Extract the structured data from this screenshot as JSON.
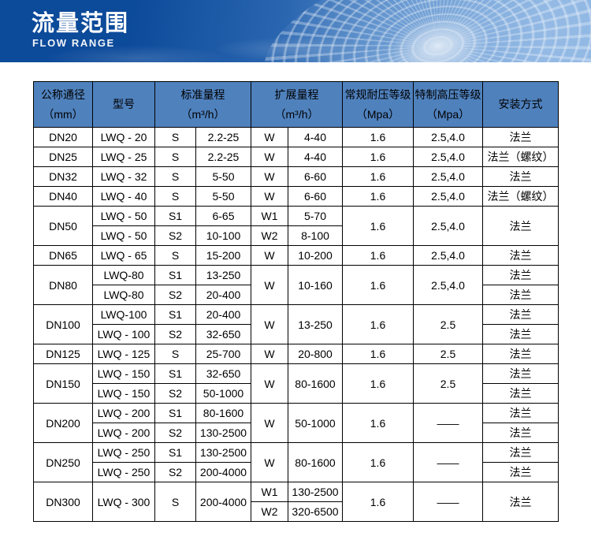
{
  "banner": {
    "title": "流量范围",
    "subtitle": "FLOW RANGE"
  },
  "colors": {
    "banner_left": "#0c4a9a",
    "banner_right": "#8db5e2",
    "table_header_bg": "#4f81bd",
    "table_border": "#000000",
    "banner_text": "#ffffff",
    "cell_text": "#000000"
  },
  "table": {
    "header_cells": [
      {
        "lines": [
          "公称通径",
          "（mm）"
        ],
        "colspan": 1
      },
      {
        "lines": [
          "型号"
        ],
        "colspan": 1
      },
      {
        "lines": [
          "标准量程",
          "（m³/h）"
        ],
        "colspan": 2
      },
      {
        "lines": [
          "扩展量程",
          "（m³/h）"
        ],
        "colspan": 2
      },
      {
        "lines": [
          "常规耐压等级",
          "（Mpa）"
        ],
        "colspan": 1
      },
      {
        "lines": [
          "特制高压等级",
          "（Mpa）"
        ],
        "colspan": 1
      },
      {
        "lines": [
          "安装方式"
        ],
        "colspan": 1
      }
    ],
    "rows": [
      [
        {
          "t": "DN20"
        },
        {
          "t": "LWQ - 20"
        },
        {
          "t": "S"
        },
        {
          "t": "2.2-25"
        },
        {
          "t": "W"
        },
        {
          "t": "4-40"
        },
        {
          "t": "1.6"
        },
        {
          "t": "2.5,4.0"
        },
        {
          "t": "法兰"
        }
      ],
      [
        {
          "t": "DN25"
        },
        {
          "t": "LWQ - 25"
        },
        {
          "t": "S"
        },
        {
          "t": "2.2-25"
        },
        {
          "t": "W"
        },
        {
          "t": "4-40"
        },
        {
          "t": "1.6"
        },
        {
          "t": "2.5,4.0"
        },
        {
          "t": "法兰（螺纹）"
        }
      ],
      [
        {
          "t": "DN32"
        },
        {
          "t": "LWQ - 32"
        },
        {
          "t": "S"
        },
        {
          "t": "5-50"
        },
        {
          "t": "W"
        },
        {
          "t": "6-60"
        },
        {
          "t": "1.6"
        },
        {
          "t": "2.5,4.0"
        },
        {
          "t": "法兰"
        }
      ],
      [
        {
          "t": "DN40"
        },
        {
          "t": "LWQ - 40"
        },
        {
          "t": "S"
        },
        {
          "t": "5-50"
        },
        {
          "t": "W"
        },
        {
          "t": "6-60"
        },
        {
          "t": "1.6"
        },
        {
          "t": "2.5,4.0"
        },
        {
          "t": "法兰（螺纹）"
        }
      ],
      [
        {
          "t": "DN50",
          "rs": 2
        },
        {
          "t": "LWQ - 50"
        },
        {
          "t": "S1"
        },
        {
          "t": "6-65"
        },
        {
          "t": "W1"
        },
        {
          "t": "5-70"
        },
        {
          "t": "1.6",
          "rs": 2
        },
        {
          "t": "2.5,4.0",
          "rs": 2
        },
        {
          "t": "法兰",
          "rs": 2
        }
      ],
      [
        {
          "t": "LWQ - 50"
        },
        {
          "t": "S2"
        },
        {
          "t": "10-100"
        },
        {
          "t": "W2"
        },
        {
          "t": "8-100"
        }
      ],
      [
        {
          "t": "DN65"
        },
        {
          "t": "LWQ - 65"
        },
        {
          "t": "S"
        },
        {
          "t": "15-200"
        },
        {
          "t": "W"
        },
        {
          "t": "10-200"
        },
        {
          "t": "1.6"
        },
        {
          "t": "2.5,4.0"
        },
        {
          "t": "法兰"
        }
      ],
      [
        {
          "t": "DN80",
          "rs": 2
        },
        {
          "t": "LWQ-80"
        },
        {
          "t": "S1"
        },
        {
          "t": "13-250"
        },
        {
          "t": "W",
          "rs": 2
        },
        {
          "t": "10-160",
          "rs": 2
        },
        {
          "t": "1.6",
          "rs": 2
        },
        {
          "t": "2.5,4.0",
          "rs": 2
        },
        {
          "t": "法兰"
        }
      ],
      [
        {
          "t": "LWQ-80"
        },
        {
          "t": "S2"
        },
        {
          "t": "20-400"
        },
        {
          "t": "法兰"
        }
      ],
      [
        {
          "t": "DN100",
          "rs": 2
        },
        {
          "t": "LWQ-100"
        },
        {
          "t": "S1"
        },
        {
          "t": "20-400"
        },
        {
          "t": "W",
          "rs": 2
        },
        {
          "t": "13-250",
          "rs": 2
        },
        {
          "t": "1.6",
          "rs": 2
        },
        {
          "t": "2.5",
          "rs": 2
        },
        {
          "t": "法兰"
        }
      ],
      [
        {
          "t": "LWQ - 100"
        },
        {
          "t": "S2"
        },
        {
          "t": "32-650"
        },
        {
          "t": "法兰"
        }
      ],
      [
        {
          "t": "DN125"
        },
        {
          "t": "LWQ - 125"
        },
        {
          "t": "S"
        },
        {
          "t": "25-700"
        },
        {
          "t": "W"
        },
        {
          "t": "20-800"
        },
        {
          "t": "1.6"
        },
        {
          "t": "2.5"
        },
        {
          "t": "法兰"
        }
      ],
      [
        {
          "t": "DN150",
          "rs": 2
        },
        {
          "t": "LWQ - 150"
        },
        {
          "t": "S1"
        },
        {
          "t": "32-650"
        },
        {
          "t": "W",
          "rs": 2
        },
        {
          "t": "80-1600",
          "rs": 2
        },
        {
          "t": "1.6",
          "rs": 2
        },
        {
          "t": "2.5",
          "rs": 2
        },
        {
          "t": "法兰"
        }
      ],
      [
        {
          "t": "LWQ - 150"
        },
        {
          "t": "S2"
        },
        {
          "t": "50-1000"
        },
        {
          "t": "法兰"
        }
      ],
      [
        {
          "t": "DN200",
          "rs": 2
        },
        {
          "t": "LWQ - 200"
        },
        {
          "t": "S1"
        },
        {
          "t": "80-1600"
        },
        {
          "t": "W",
          "rs": 2
        },
        {
          "t": "50-1000",
          "rs": 2
        },
        {
          "t": "1.6",
          "rs": 2
        },
        {
          "t": "——",
          "rs": 2
        },
        {
          "t": "法兰"
        }
      ],
      [
        {
          "t": "LWQ - 200"
        },
        {
          "t": "S2"
        },
        {
          "t": "130-2500"
        },
        {
          "t": "法兰"
        }
      ],
      [
        {
          "t": "DN250",
          "rs": 2
        },
        {
          "t": "LWQ - 250"
        },
        {
          "t": "S1"
        },
        {
          "t": "130-2500"
        },
        {
          "t": "W",
          "rs": 2
        },
        {
          "t": "80-1600",
          "rs": 2
        },
        {
          "t": "1.6",
          "rs": 2
        },
        {
          "t": "——",
          "rs": 2
        },
        {
          "t": "法兰"
        }
      ],
      [
        {
          "t": "LWQ - 250"
        },
        {
          "t": "S2"
        },
        {
          "t": "200-4000"
        },
        {
          "t": "法兰"
        }
      ],
      [
        {
          "t": "DN300",
          "rs": 2
        },
        {
          "t": "LWQ - 300",
          "rs": 2
        },
        {
          "t": "S",
          "rs": 2
        },
        {
          "t": "200-4000",
          "rs": 2
        },
        {
          "t": "W1"
        },
        {
          "t": "130-2500"
        },
        {
          "t": "1.6",
          "rs": 2
        },
        {
          "t": "——",
          "rs": 2
        },
        {
          "t": "法兰",
          "rs": 2
        }
      ],
      [
        {
          "t": "W2"
        },
        {
          "t": "320-6500"
        }
      ]
    ]
  }
}
